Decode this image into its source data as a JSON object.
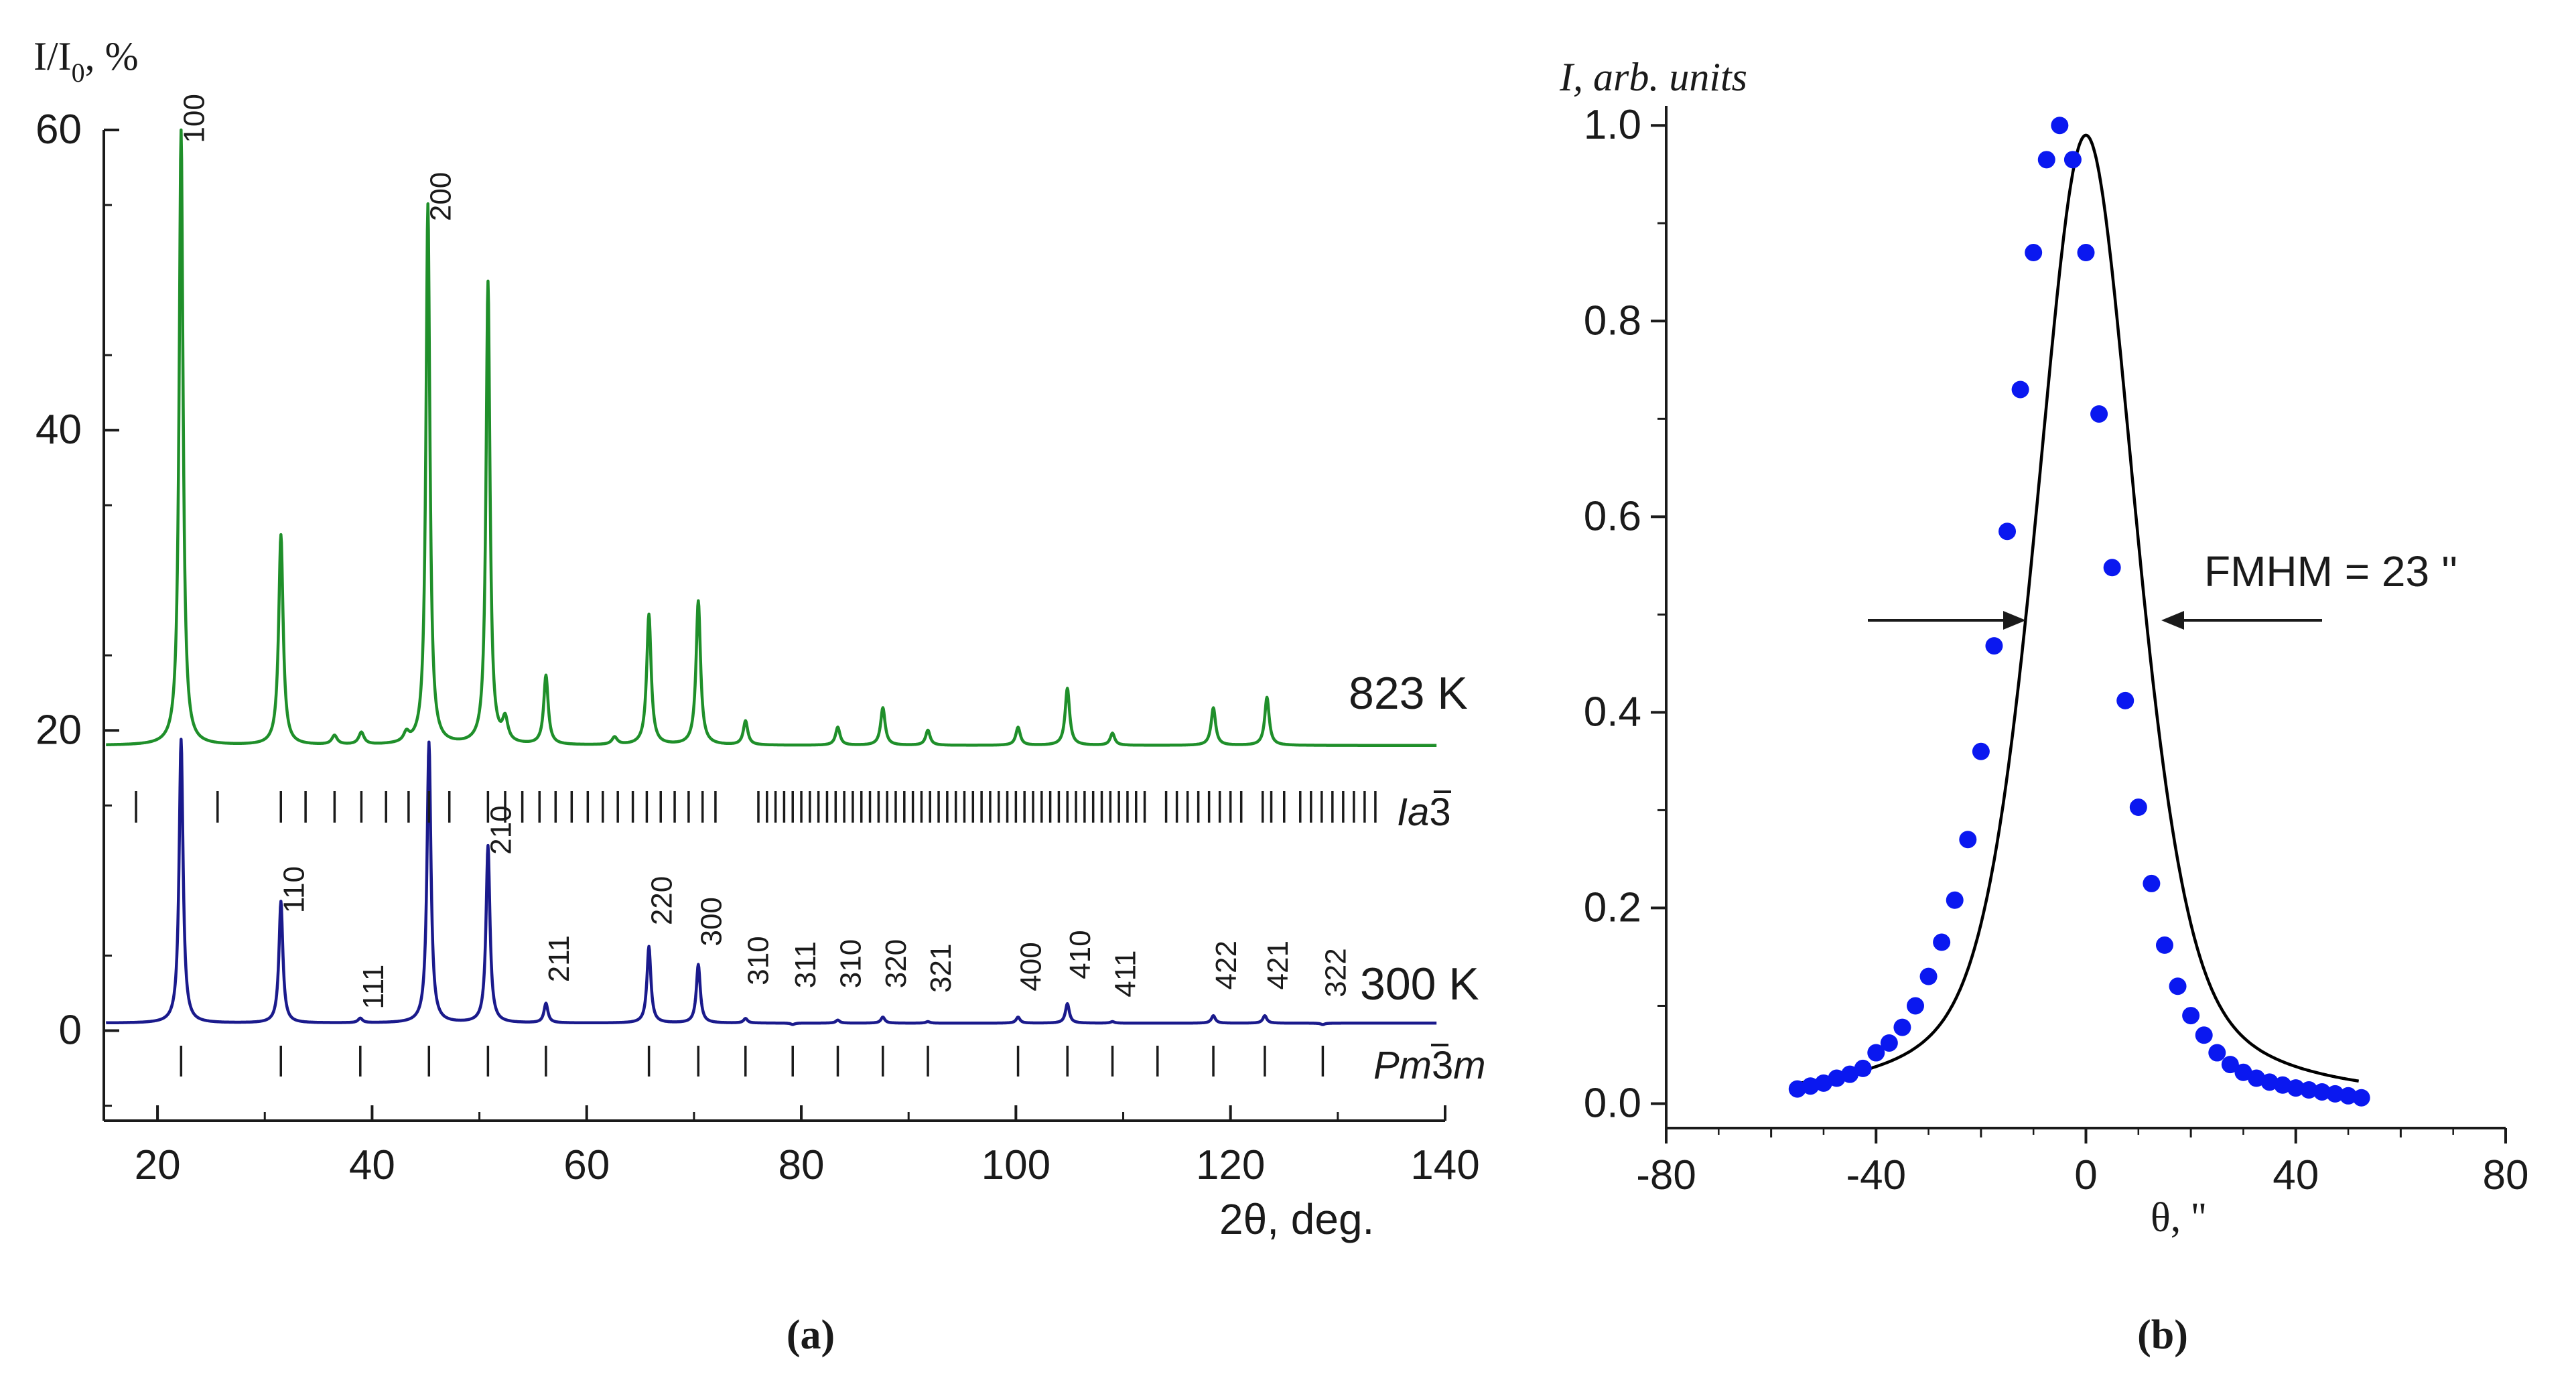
{
  "chart_data": [
    {
      "panel": "(a)",
      "type": "line",
      "xlabel": "2θ, deg.",
      "ylabel": "I/I₀, %",
      "xlim": [
        15,
        140
      ],
      "ylim": [
        -6,
        60
      ],
      "xticks": [
        20,
        40,
        60,
        80,
        100,
        120,
        140
      ],
      "yticks": [
        0,
        20,
        40,
        60
      ],
      "series": [
        {
          "name": "823 K",
          "color": "#1f8f2a",
          "baseline": 19.0,
          "peaks": [
            {
              "x": 22.2,
              "h": 60.0,
              "w": 0.22
            },
            {
              "x": 31.5,
              "h": 33.0,
              "w": 0.25
            },
            {
              "x": 36.5,
              "h": 19.6,
              "w": 0.3
            },
            {
              "x": 39.0,
              "h": 19.8,
              "w": 0.3
            },
            {
              "x": 43.2,
              "h": 19.6,
              "w": 0.3
            },
            {
              "x": 45.2,
              "h": 55.0,
              "w": 0.22
            },
            {
              "x": 50.8,
              "h": 49.8,
              "w": 0.22
            },
            {
              "x": 52.4,
              "h": 20.5,
              "w": 0.3
            },
            {
              "x": 56.2,
              "h": 23.6,
              "w": 0.25
            },
            {
              "x": 62.6,
              "h": 19.5,
              "w": 0.3
            },
            {
              "x": 65.8,
              "h": 27.7,
              "w": 0.25
            },
            {
              "x": 70.4,
              "h": 28.6,
              "w": 0.25
            },
            {
              "x": 74.8,
              "h": 20.6,
              "w": 0.25
            },
            {
              "x": 83.4,
              "h": 20.2,
              "w": 0.25
            },
            {
              "x": 87.6,
              "h": 21.5,
              "w": 0.25
            },
            {
              "x": 91.8,
              "h": 20.0,
              "w": 0.25
            },
            {
              "x": 100.2,
              "h": 20.2,
              "w": 0.25
            },
            {
              "x": 104.8,
              "h": 22.8,
              "w": 0.25
            },
            {
              "x": 109.0,
              "h": 19.8,
              "w": 0.25
            },
            {
              "x": 118.4,
              "h": 21.5,
              "w": 0.25
            },
            {
              "x": 123.4,
              "h": 22.2,
              "w": 0.25
            },
            {
              "x": 128.6,
              "h": 19.0,
              "w": 0.25
            }
          ]
        },
        {
          "name": "300 K",
          "color": "#1a1a8c",
          "baseline": 0.5,
          "peaks": [
            {
              "x": 22.2,
              "h": 19.4,
              "w": 0.22
            },
            {
              "x": 31.5,
              "h": 8.6,
              "w": 0.22
            },
            {
              "x": 38.9,
              "h": 0.8,
              "w": 0.25
            },
            {
              "x": 45.3,
              "h": 19.2,
              "w": 0.22
            },
            {
              "x": 50.8,
              "h": 12.3,
              "w": 0.22
            },
            {
              "x": 56.2,
              "h": 1.8,
              "w": 0.22
            },
            {
              "x": 65.8,
              "h": 5.6,
              "w": 0.22
            },
            {
              "x": 70.4,
              "h": 4.4,
              "w": 0.22
            },
            {
              "x": 74.8,
              "h": 0.8,
              "w": 0.22
            },
            {
              "x": 79.2,
              "h": 0.4,
              "w": 0.22
            },
            {
              "x": 83.4,
              "h": 0.7,
              "w": 0.22
            },
            {
              "x": 87.6,
              "h": 0.9,
              "w": 0.22
            },
            {
              "x": 91.8,
              "h": 0.6,
              "w": 0.22
            },
            {
              "x": 100.2,
              "h": 0.9,
              "w": 0.22
            },
            {
              "x": 104.8,
              "h": 1.8,
              "w": 0.22
            },
            {
              "x": 109.0,
              "h": 0.6,
              "w": 0.22
            },
            {
              "x": 118.4,
              "h": 1.0,
              "w": 0.22
            },
            {
              "x": 123.2,
              "h": 1.0,
              "w": 0.22
            },
            {
              "x": 128.6,
              "h": 0.4,
              "w": 0.22
            }
          ]
        }
      ],
      "reflection_markers": {
        "Ia3": [
          18.0,
          25.6,
          31.5,
          33.8,
          36.5,
          39.0,
          41.3,
          43.4,
          45.3,
          47.2,
          50.8,
          52.4,
          54.0,
          55.6,
          57.1,
          58.6,
          60.1,
          61.5,
          62.9,
          64.3,
          65.6,
          66.9,
          68.2,
          69.5,
          70.8,
          72.0,
          76.0,
          76.8,
          77.6,
          78.4,
          79.2,
          80.0,
          80.8,
          81.6,
          82.4,
          83.2,
          84.0,
          84.8,
          85.6,
          86.4,
          87.2,
          88.0,
          88.8,
          89.6,
          90.4,
          91.2,
          92.0,
          92.8,
          93.6,
          94.4,
          95.2,
          96.0,
          96.8,
          97.6,
          98.4,
          99.2,
          100.0,
          100.8,
          101.6,
          102.4,
          103.2,
          104.0,
          104.8,
          105.6,
          106.4,
          107.2,
          108.0,
          108.8,
          109.6,
          110.4,
          111.2,
          112.0,
          114.0,
          115.0,
          116.0,
          117.0,
          118.0,
          119.0,
          120.0,
          121.0,
          123.0,
          123.8,
          125.0,
          126.5,
          127.5,
          128.5,
          129.5,
          130.5,
          131.5,
          132.5,
          133.5
        ],
        "Pm3m": [
          22.2,
          31.5,
          38.9,
          45.3,
          50.8,
          56.2,
          65.8,
          70.4,
          74.8,
          79.2,
          83.4,
          87.6,
          91.8,
          100.2,
          104.8,
          109.0,
          113.2,
          118.4,
          123.2,
          128.6
        ]
      },
      "labels": {
        "y_unit": "I/I",
        "y_sub": "0",
        "y_pct": ", %",
        "x_axis": "2θ, deg.",
        "temp_high": "823 K",
        "temp_low": "300 K",
        "phase_ia3_a": "Ia",
        "phase_ia3_b": "3",
        "phase_pm3m_a": "Pm",
        "phase_pm3m_b": "3",
        "phase_pm3m_c": "m",
        "panel": "(a)"
      },
      "hkl_labels": [
        {
          "text": "100",
          "x": 22.2,
          "y": 58.5
        },
        {
          "text": "200",
          "x": 45.2,
          "y": 53.3
        },
        {
          "text": "110",
          "x": 31.5,
          "y": 7.2
        },
        {
          "text": "111",
          "x": 38.9,
          "y": 0.8
        },
        {
          "text": "210",
          "x": 50.8,
          "y": 11.1
        },
        {
          "text": "211",
          "x": 56.2,
          "y": 2.6
        },
        {
          "text": "220",
          "x": 65.8,
          "y": 6.4
        },
        {
          "text": "300",
          "x": 70.4,
          "y": 5.0
        },
        {
          "text": "310",
          "x": 74.8,
          "y": 2.4
        },
        {
          "text": "311",
          "x": 79.2,
          "y": 2.2
        },
        {
          "text": "310",
          "x": 83.4,
          "y": 2.2
        },
        {
          "text": "320",
          "x": 87.6,
          "y": 2.2
        },
        {
          "text": "321",
          "x": 91.8,
          "y": 1.9
        },
        {
          "text": "400",
          "x": 100.2,
          "y": 2.0
        },
        {
          "text": "410",
          "x": 104.8,
          "y": 2.8
        },
        {
          "text": "411",
          "x": 109.0,
          "y": 1.6
        },
        {
          "text": "422",
          "x": 118.4,
          "y": 2.1
        },
        {
          "text": "421",
          "x": 123.2,
          "y": 2.1
        },
        {
          "text": "322",
          "x": 128.6,
          "y": 1.6
        }
      ]
    },
    {
      "panel": "(b)",
      "type": "scatter",
      "xlabel": "θ, ''",
      "ylabel": "I, arb. units",
      "xlim": [
        -80,
        80
      ],
      "ylim": [
        -0.025,
        1.02
      ],
      "xticks": [
        -80,
        -40,
        0,
        40,
        80
      ],
      "yticks": [
        0.0,
        0.2,
        0.4,
        0.6,
        0.8,
        1.0
      ],
      "ytick_labels": [
        "0.0",
        "0.2",
        "0.4",
        "0.6",
        "0.8",
        "1.0"
      ],
      "annotation": "FMHM = 23 ''",
      "fwhm": 23,
      "fit_curve": {
        "type": "pseudo-voigt",
        "color": "#000000",
        "eta": 0.5,
        "center": 0,
        "fwhm": 23,
        "xmin": -55,
        "xmax": 52
      },
      "marker_color": "#0a18f0",
      "points": {
        "x": [
          -55,
          -52.5,
          -50,
          -47.5,
          -45,
          -42.5,
          -40,
          -37.5,
          -35,
          -32.5,
          -30,
          -27.5,
          -25,
          -22.5,
          -20,
          -17.5,
          -15,
          -12.5,
          -10,
          -7.5,
          -5,
          -2.5,
          0,
          2.5,
          5,
          7.5,
          10,
          12.5,
          15,
          17.5,
          20,
          22.5,
          25,
          27.5,
          30,
          32.5,
          35,
          37.5,
          40,
          42.5,
          45,
          47.5,
          50,
          52.5
        ],
        "y": [
          0.015,
          0.018,
          0.021,
          0.026,
          0.03,
          0.036,
          0.052,
          0.062,
          0.078,
          0.1,
          0.13,
          0.165,
          0.208,
          0.27,
          0.36,
          0.468,
          0.585,
          0.73,
          0.87,
          0.965,
          1.0,
          0.965,
          0.87,
          0.705,
          0.548,
          0.412,
          0.303,
          0.225,
          0.162,
          0.12,
          0.09,
          0.07,
          0.052,
          0.04,
          0.032,
          0.026,
          0.022,
          0.019,
          0.016,
          0.014,
          0.012,
          0.01,
          0.008,
          0.006
        ]
      },
      "labels": {
        "y_axis": "I, arb. units",
        "x_axis": "θ, ''",
        "panel": "(b)"
      }
    }
  ]
}
